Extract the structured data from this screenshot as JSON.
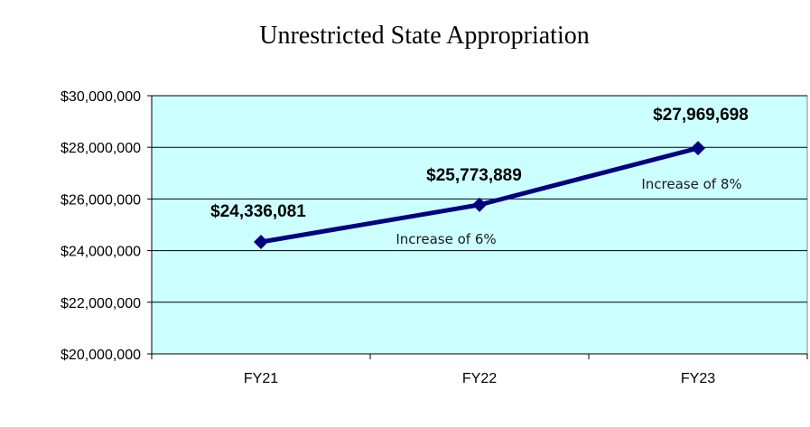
{
  "chart_data": {
    "type": "line",
    "title": "Unrestricted  State Appropriation",
    "categories": [
      "FY21",
      "FY22",
      "FY23"
    ],
    "series": [
      {
        "values": [
          24336081,
          25773889,
          27969698
        ]
      }
    ],
    "data_labels": [
      "$24,336,081",
      "$25,773,889",
      "$27,969,698"
    ],
    "ylim": [
      20000000,
      30000000
    ],
    "yticks": [
      20000000,
      22000000,
      24000000,
      26000000,
      28000000,
      30000000
    ],
    "ytick_labels": [
      "$20,000,000",
      "$22,000,000",
      "$24,000,000",
      "$26,000,000",
      "$28,000,000",
      "$30,000,000"
    ],
    "annotations": [
      "Increase of 6%",
      "Increase of  8%"
    ],
    "grid": true,
    "legend": "none",
    "colors": {
      "line": "#000080",
      "plot_background": "#ccffff",
      "grid": "#000000"
    }
  }
}
